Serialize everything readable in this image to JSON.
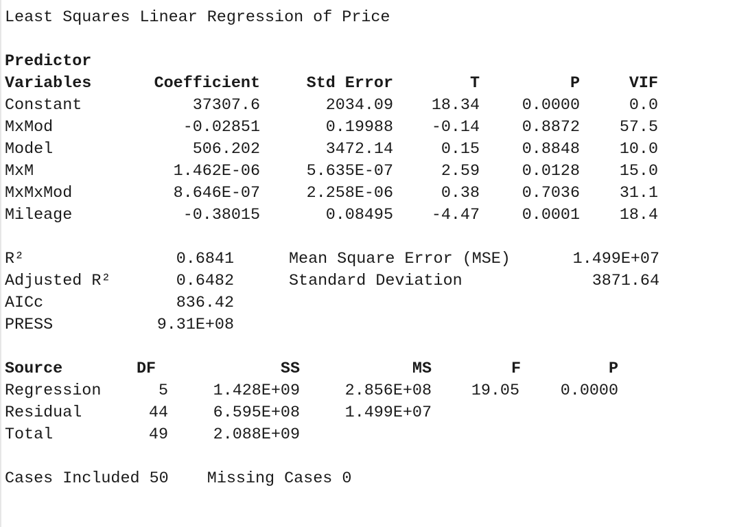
{
  "title": "Least Squares Linear Regression of Price",
  "coef_table": {
    "header_top": "Predictor",
    "headers": [
      "Variables",
      "Coefficient",
      "Std Error",
      "T",
      "P",
      "VIF"
    ],
    "rows": [
      {
        "variable": "Constant",
        "coefficient": "37307.6",
        "std_error": "2034.09",
        "t": "18.34",
        "p": "0.0000",
        "vif": "0.0"
      },
      {
        "variable": "MxMod",
        "coefficient": "-0.02851",
        "std_error": "0.19988",
        "t": "-0.14",
        "p": "0.8872",
        "vif": "57.5"
      },
      {
        "variable": "Model",
        "coefficient": "506.202",
        "std_error": "3472.14",
        "t": "0.15",
        "p": "0.8848",
        "vif": "10.0"
      },
      {
        "variable": "MxM",
        "coefficient": "1.462E-06",
        "std_error": "5.635E-07",
        "t": "2.59",
        "p": "0.0128",
        "vif": "15.0"
      },
      {
        "variable": "MxMxMod",
        "coefficient": "8.646E-07",
        "std_error": "2.258E-06",
        "t": "0.38",
        "p": "0.7036",
        "vif": "31.1"
      },
      {
        "variable": "Mileage",
        "coefficient": "-0.38015",
        "std_error": "0.08495",
        "t": "-4.47",
        "p": "0.0001",
        "vif": "18.4"
      }
    ]
  },
  "fit_stats": {
    "r2_label": "R²",
    "r2_value": "0.6841",
    "adj_r2_label": "Adjusted R²",
    "adj_r2_value": "0.6482",
    "aicc_label": "AICc",
    "aicc_value": "836.42",
    "press_label": "PRESS",
    "press_value": "9.31E+08",
    "mse_label": "Mean Square Error (MSE)",
    "mse_value": "1.499E+07",
    "sd_label": "Standard Deviation",
    "sd_value": "3871.64"
  },
  "anova": {
    "headers": [
      "Source",
      "DF",
      "SS",
      "MS",
      "F",
      "P"
    ],
    "rows": [
      {
        "source": "Regression",
        "df": "5",
        "ss": "1.428E+09",
        "ms": "2.856E+08",
        "f": "19.05",
        "p": "0.0000"
      },
      {
        "source": "Residual",
        "df": "44",
        "ss": "6.595E+08",
        "ms": "1.499E+07",
        "f": "",
        "p": ""
      },
      {
        "source": "Total",
        "df": "49",
        "ss": "2.088E+09",
        "ms": "",
        "f": "",
        "p": ""
      }
    ]
  },
  "cases": {
    "included_label": "Cases Included",
    "included_value": "50",
    "missing_label": "Missing Cases",
    "missing_value": "0"
  }
}
